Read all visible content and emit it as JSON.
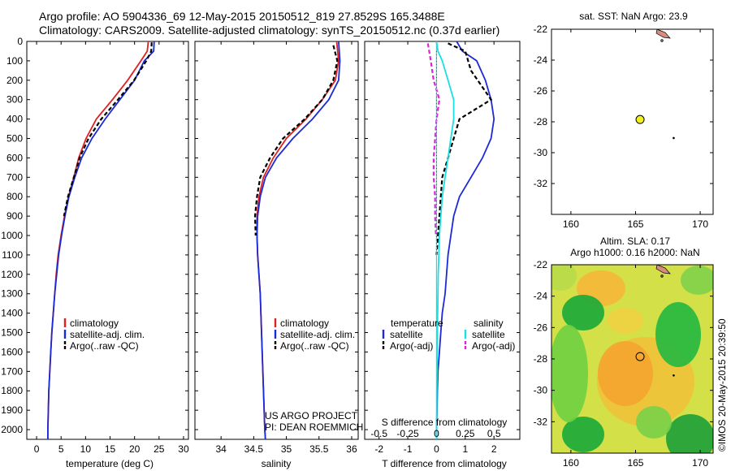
{
  "header": {
    "line1": "Argo profile: AO 5904336_69 12-May-2015 20150512_819 27.8529S 165.3488E",
    "line2": "Climatology: CARS2009. Satellite-adjusted climatology: synTS_20150512.nc (0.37d earlier)"
  },
  "credit": "©IMOS 20-May-2015 20:39:50",
  "colors": {
    "red": "#e02020",
    "blue": "#1b2ad8",
    "black": "#000000",
    "cyan": "#19e0e0",
    "magenta": "#e020e0",
    "dotted": "#cc2020",
    "land": "#d98b80",
    "marker": "#f0f020"
  },
  "chart_data": [
    {
      "type": "line",
      "id": "temperature",
      "xlabel": "temperature (deg C)",
      "ylim": [
        2050,
        0
      ],
      "xlim": [
        -2,
        31
      ],
      "xticks": [
        "0",
        "5",
        "10",
        "15",
        "20",
        "25",
        "30"
      ],
      "xtick_values": [
        0,
        5,
        10,
        15,
        20,
        25,
        30
      ],
      "yticks": [
        "0",
        "100",
        "200",
        "300",
        "400",
        "500",
        "600",
        "700",
        "800",
        "900",
        "1000",
        "1100",
        "1200",
        "1300",
        "1400",
        "1500",
        "1600",
        "1700",
        "1800",
        "1900",
        "2000"
      ],
      "ytick_values": [
        0,
        100,
        200,
        300,
        400,
        500,
        600,
        700,
        800,
        900,
        1000,
        1100,
        1200,
        1300,
        1400,
        1500,
        1600,
        1700,
        1800,
        1900,
        2000
      ],
      "legend": [
        "climatology",
        "satellite-adj. clim.",
        "Argo(..raw -QC)"
      ],
      "series": [
        {
          "name": "climatology",
          "color": "red",
          "style": "solid",
          "x": [
            22.8,
            22.6,
            21.3,
            18.6,
            15.5,
            12.2,
            10.1,
            8.6,
            7.6,
            6.5,
            5.7,
            5.0,
            4.4,
            4.0,
            3.7,
            3.4,
            3.1,
            2.9,
            2.7,
            2.5,
            2.4,
            2.3,
            2.3
          ],
          "y": [
            0,
            50,
            100,
            200,
            300,
            400,
            500,
            600,
            700,
            800,
            900,
            1000,
            1100,
            1200,
            1300,
            1400,
            1500,
            1600,
            1700,
            1800,
            1900,
            2000,
            2050
          ]
        },
        {
          "name": "satellite-adj. clim.",
          "color": "blue",
          "style": "solid",
          "x": [
            24.0,
            23.9,
            22.0,
            20.0,
            17.0,
            14.0,
            11.3,
            9.2,
            7.8,
            6.6,
            5.8,
            5.1,
            4.5,
            4.1,
            3.7,
            3.4,
            3.1,
            2.9,
            2.7,
            2.5,
            2.4,
            2.3,
            2.3
          ],
          "y": [
            0,
            50,
            100,
            200,
            300,
            400,
            500,
            600,
            700,
            800,
            900,
            1000,
            1100,
            1200,
            1300,
            1400,
            1500,
            1600,
            1700,
            1800,
            1900,
            2000,
            2050
          ]
        },
        {
          "name": "Argo(..raw -QC)",
          "color": "black",
          "style": "dashed",
          "x": [
            23.5,
            23.4,
            22.4,
            19.9,
            16.6,
            13.2,
            10.6,
            8.8,
            7.6,
            6.4,
            5.6
          ],
          "y": [
            5,
            50,
            100,
            200,
            300,
            400,
            500,
            600,
            700,
            800,
            900
          ]
        }
      ]
    },
    {
      "type": "line",
      "id": "salinity",
      "xlabel": "salinity",
      "ylim": [
        2050,
        0
      ],
      "xlim": [
        33.6,
        36.1
      ],
      "xticks": [
        "34",
        "34.5",
        "35",
        "35.5",
        "36"
      ],
      "xtick_values": [
        34,
        34.5,
        35,
        35.5,
        36
      ],
      "legend": [
        "climatology",
        "satellite-adj. clim.",
        "Argo(..raw -QC)"
      ],
      "annotations": [
        "US ARGO PROJECT",
        "PI: DEAN ROEMMICH"
      ],
      "series": [
        {
          "name": "climatology",
          "color": "red",
          "style": "solid",
          "x": [
            35.77,
            35.8,
            35.75,
            35.55,
            35.3,
            35.0,
            34.8,
            34.65,
            34.58,
            34.55,
            34.55,
            34.56,
            34.58,
            34.6,
            34.61,
            34.62,
            34.63,
            34.64,
            34.65,
            34.66,
            34.67,
            34.68
          ],
          "y": [
            0,
            100,
            200,
            300,
            400,
            500,
            600,
            700,
            800,
            900,
            1000,
            1100,
            1200,
            1300,
            1400,
            1500,
            1600,
            1700,
            1800,
            1900,
            2000,
            2050
          ]
        },
        {
          "name": "satellite-adj. clim.",
          "color": "blue",
          "style": "solid",
          "x": [
            35.8,
            35.82,
            35.8,
            35.65,
            35.4,
            35.1,
            34.85,
            34.68,
            34.6,
            34.56,
            34.55,
            34.56,
            34.58,
            34.6,
            34.61,
            34.62,
            34.63,
            34.64,
            34.65,
            34.66,
            34.67,
            34.68
          ],
          "y": [
            0,
            100,
            200,
            300,
            400,
            500,
            600,
            700,
            800,
            900,
            1000,
            1100,
            1200,
            1300,
            1400,
            1500,
            1600,
            1700,
            1800,
            1900,
            2000,
            2050
          ]
        },
        {
          "name": "Argo(..raw -QC)",
          "color": "black",
          "style": "dashed",
          "x": [
            35.72,
            35.78,
            35.72,
            35.55,
            35.28,
            34.95,
            34.75,
            34.6,
            34.55,
            34.52,
            34.53
          ],
          "y": [
            20,
            100,
            200,
            300,
            400,
            500,
            600,
            700,
            800,
            900,
            1000
          ]
        }
      ]
    },
    {
      "type": "line",
      "id": "difference",
      "xlabel_top": "S difference from climatology",
      "xlabel": "T difference from climatology",
      "ylim": [
        2050,
        0
      ],
      "xlim": [
        -2.5,
        2.9
      ],
      "xticks": [
        "-2",
        "-1",
        "0",
        "1",
        "2"
      ],
      "xtick_values": [
        -2,
        -1,
        0,
        1,
        2
      ],
      "sticks": [
        "-0.5",
        "-0.25",
        "0",
        "0.25",
        "0.5"
      ],
      "stick_values": [
        -2,
        -1,
        0,
        1,
        2
      ],
      "legend_headers": [
        "temperature",
        "salinity"
      ],
      "legend": [
        "satellite",
        "Argo(-adj)",
        "satellite",
        "Argo(-adj)"
      ],
      "series": [
        {
          "name": "temperature satellite",
          "color": "blue",
          "style": "solid",
          "x": [
            0.7,
            0.9,
            1.4,
            1.7,
            1.9,
            2.0,
            1.9,
            1.6,
            1.2,
            0.8,
            0.6,
            0.5,
            0.4,
            0.35,
            0.3,
            0.2,
            0.15,
            0.1,
            0.05,
            0.03,
            0.02,
            0.0,
            0.0
          ],
          "y": [
            0,
            50,
            100,
            200,
            300,
            400,
            500,
            600,
            700,
            800,
            900,
            1000,
            1100,
            1200,
            1300,
            1400,
            1500,
            1600,
            1700,
            1800,
            1900,
            2000,
            2050
          ]
        },
        {
          "name": "temperature Argo(-adj)",
          "color": "black",
          "style": "dashed",
          "x": [
            0.4,
            1.0,
            1.2,
            1.9,
            0.8,
            0.6,
            0.4,
            0.2,
            0.15,
            0.1,
            0.05,
            0.0
          ],
          "y": [
            10,
            50,
            150,
            300,
            400,
            500,
            600,
            700,
            800,
            900,
            1000,
            1100
          ]
        },
        {
          "name": "salinity satellite",
          "color": "cyan",
          "style": "solid",
          "x": [
            0.0,
            0.05,
            0.2,
            0.4,
            0.6,
            0.6,
            0.5,
            0.4,
            0.3,
            0.2,
            0.15,
            0.1,
            0.08,
            0.06,
            0.05,
            0.04,
            0.03,
            0.02,
            0.02,
            0.01,
            0.01,
            0.0,
            0.0
          ],
          "y": [
            0,
            50,
            100,
            200,
            300,
            400,
            500,
            600,
            700,
            800,
            900,
            1000,
            1100,
            1200,
            1300,
            1400,
            1500,
            1600,
            1700,
            1800,
            1900,
            2000,
            2050
          ]
        },
        {
          "name": "salinity Argo(-adj)",
          "color": "magenta",
          "style": "dashed",
          "x": [
            -0.3,
            -0.2,
            -0.1,
            0.1,
            0.0,
            -0.05,
            -0.1,
            -0.1,
            -0.05,
            -0.05,
            -0.02
          ],
          "y": [
            10,
            100,
            200,
            300,
            400,
            500,
            600,
            700,
            800,
            900,
            1000
          ]
        }
      ]
    },
    {
      "type": "scatter",
      "id": "sst-map",
      "title": "sat. SST: NaN Argo: 23.9",
      "xlim": [
        158.5,
        171
      ],
      "ylim": [
        -34,
        -22
      ],
      "xticks": [
        "160",
        "165",
        "170"
      ],
      "xtick_values": [
        160,
        165,
        170
      ],
      "yticks": [
        "-22",
        "-24",
        "-26",
        "-28",
        "-30",
        "-32"
      ],
      "ytick_values": [
        -22,
        -24,
        -26,
        -28,
        -30,
        -32
      ],
      "points": [
        {
          "name": "profile",
          "x": 165.35,
          "y": -27.85
        },
        {
          "name": "island",
          "x": 167.95,
          "y": -29.05
        }
      ]
    },
    {
      "type": "heatmap",
      "id": "sla-map",
      "title_line1": "Altim. SLA: 0.17",
      "title_line2": "Argo h1000: 0.16 h2000: NaN",
      "xlim": [
        158.5,
        171
      ],
      "ylim": [
        -34,
        -22
      ],
      "xticks": [
        "160",
        "165",
        "170"
      ],
      "xtick_values": [
        160,
        165,
        170
      ],
      "yticks": [
        "-22",
        "-24",
        "-26",
        "-28",
        "-30",
        "-32"
      ],
      "ytick_values": [
        -22,
        -24,
        -26,
        -28,
        -30,
        -32
      ],
      "points": [
        {
          "name": "profile",
          "x": 165.35,
          "y": -27.85
        },
        {
          "name": "island",
          "x": 167.95,
          "y": -29.05
        }
      ]
    }
  ]
}
